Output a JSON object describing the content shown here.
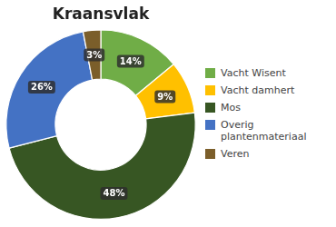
{
  "chart_data": {
    "type": "doughnut",
    "title": "Kraansvlak",
    "categories": [
      "Vacht Wisent",
      "Vacht damhert",
      "Mos",
      "Overig\nplantenmateriaal",
      "Veren"
    ],
    "values": [
      14,
      9,
      48,
      26,
      3
    ],
    "value_labels": [
      "14%",
      "9%",
      "48%",
      "26%",
      "3%"
    ],
    "colors": [
      "#70ad47",
      "#ffc000",
      "#375623",
      "#4472c4",
      "#7b5e2a"
    ],
    "data_labels": true,
    "legend": "right"
  }
}
